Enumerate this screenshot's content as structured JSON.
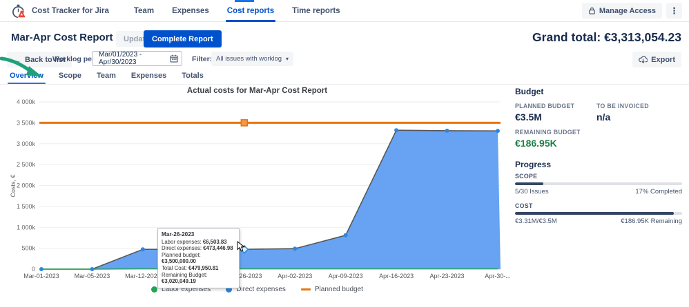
{
  "browser": {
    "loading_bar_color": "#1A73E8"
  },
  "nav": {
    "app_name": "Cost Tracker for Jira",
    "items": [
      {
        "label": "Team"
      },
      {
        "label": "Expenses"
      },
      {
        "label": "Cost reports"
      },
      {
        "label": "Time reports"
      }
    ],
    "active_item": "Cost reports",
    "manage_access": "Manage Access",
    "accent_color": "#0052CC"
  },
  "header": {
    "title": "Mar-Apr Cost Report",
    "update_button": "Update",
    "complete_button": "Complete Report",
    "grand_total": "Grand total: €3,313,054.23"
  },
  "toolbar": {
    "back_button": "Back to list",
    "worklog_label": "Worklog period:",
    "worklog_value": "Mar/01/2023 - Apr/30/2023",
    "filter_label": "Filter:",
    "filter_value": "All issues with worklog",
    "export_button": "Export"
  },
  "tabs": {
    "items": [
      {
        "label": "Overview"
      },
      {
        "label": "Scope"
      },
      {
        "label": "Team"
      },
      {
        "label": "Expenses"
      },
      {
        "label": "Totals"
      }
    ],
    "active": "Overview"
  },
  "chart_data": {
    "type": "area",
    "title": "Actual costs for Mar-Apr Cost Report",
    "ylabel": "Costs, €",
    "ylim": [
      0,
      4000000
    ],
    "ytick_labels": [
      "0",
      "500k",
      "1 000k",
      "1 500k",
      "2 000k",
      "2 500k",
      "3 000k",
      "3 500k",
      "4 000k"
    ],
    "categories": [
      "Mar-01-2023",
      "Mar-05-2023",
      "Mar-12-2023",
      "Mar-19-2023",
      "Mar-26-2023",
      "Apr-02-2023",
      "Apr-09-2023",
      "Apr-16-2023",
      "Apr-23-2023",
      "Apr-30-..."
    ],
    "series": [
      {
        "name": "Labor expenses",
        "type": "line",
        "color": "#21A453",
        "values": [
          0,
          0,
          6504,
          6504,
          6504,
          6504,
          6504,
          6504,
          6504,
          6504
        ]
      },
      {
        "name": "Direct expenses",
        "type": "area",
        "color": "#2E86DE",
        "fill": "#67A3F2",
        "edge": "#54575B",
        "values": [
          0,
          0,
          473447,
          473447,
          473447,
          490000,
          810000,
          3322000,
          3310000,
          3306550
        ]
      },
      {
        "name": "Planned budget",
        "type": "line",
        "color": "#E8740C",
        "values": [
          3500000,
          3500000,
          3500000,
          3500000,
          3500000,
          3500000,
          3500000,
          3500000,
          3500000,
          3500000
        ]
      }
    ],
    "legend_position": "bottom",
    "grid": true,
    "hover_index": 4
  },
  "tooltip": {
    "date": "Mar-26-2023",
    "rows": [
      {
        "label": "Labor expenses:",
        "value": "€6,503.83"
      },
      {
        "label": "Direct expenses:",
        "value": "€473,446.98"
      },
      {
        "label": "Planned budget:",
        "value": "€3,500,000.00"
      },
      {
        "label": "Total Cost:",
        "value": "€479,950.81"
      },
      {
        "label": "Remaining Budget:",
        "value": "€3,020,049.19"
      }
    ]
  },
  "sidebar": {
    "budget_title": "Budget",
    "planned_budget_label": "PLANNED BUDGET",
    "planned_budget_value": "€3.5M",
    "to_be_invoiced_label": "TO BE INVOICED",
    "to_be_invoiced_value": "n/a",
    "remaining_budget_label": "REMAINING BUDGET",
    "remaining_budget_value": "€186.95K",
    "remaining_budget_color": "#1E7E46",
    "progress_title": "Progress",
    "scope_label": "SCOPE",
    "scope_issues": "5/30 Issues",
    "scope_completed": "17% Completed",
    "scope_percent": 17,
    "cost_label": "COST",
    "cost_ratio": "€3.31M/€3.5M",
    "cost_remaining": "€186.95K Remaining",
    "cost_percent": 95,
    "bar_fill_color": "#344563"
  },
  "annotation": {
    "arrow_color": "#1FA07A"
  }
}
